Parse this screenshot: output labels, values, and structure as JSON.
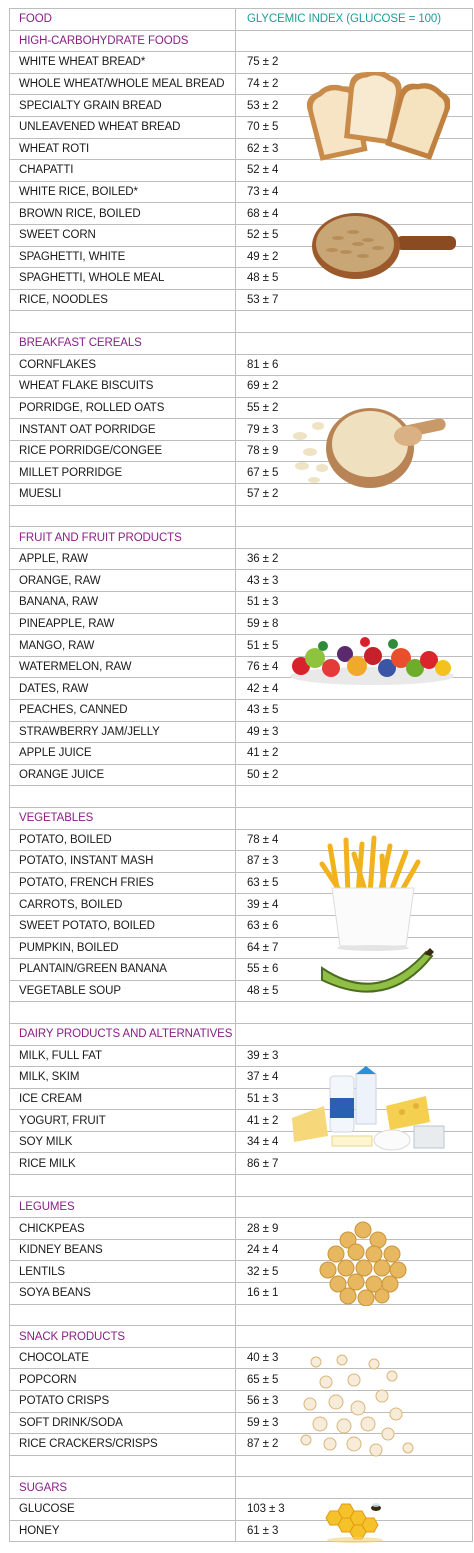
{
  "header": {
    "food": "FOOD",
    "gi": "GLYCEMIC INDEX (GLUCOSE = 100)"
  },
  "sections": [
    {
      "title": "HIGH-CARBOHYDRATE FOODS",
      "rows": [
        {
          "food": "WHITE WHEAT BREAD*",
          "gi": "75 ± 2"
        },
        {
          "food": "WHOLE WHEAT/WHOLE MEAL BREAD",
          "gi": "74 ± 2"
        },
        {
          "food": "SPECIALTY GRAIN BREAD",
          "gi": "53 ± 2"
        },
        {
          "food": "UNLEAVENED WHEAT BREAD",
          "gi": "70 ± 5"
        },
        {
          "food": "WHEAT ROTI",
          "gi": "62 ± 3"
        },
        {
          "food": "CHAPATTI",
          "gi": "52 ± 4"
        },
        {
          "food": "WHITE RICE, BOILED*",
          "gi": "73 ± 4"
        },
        {
          "food": "BROWN RICE, BOILED",
          "gi": "68 ± 4"
        },
        {
          "food": "SWEET CORN",
          "gi": "52 ± 5"
        },
        {
          "food": "SPAGHETTI, WHITE",
          "gi": "49 ± 2"
        },
        {
          "food": "SPAGHETTI, WHOLE MEAL",
          "gi": "48 ± 5"
        },
        {
          "food": "RICE, NOODLES",
          "gi": "53 ± 7"
        }
      ]
    },
    {
      "title": "BREAKFAST CEREALS",
      "rows": [
        {
          "food": "CORNFLAKES",
          "gi": "81 ± 6"
        },
        {
          "food": "WHEAT FLAKE BISCUITS",
          "gi": "69 ± 2"
        },
        {
          "food": "PORRIDGE, ROLLED OATS",
          "gi": "55 ± 2"
        },
        {
          "food": "INSTANT OAT PORRIDGE",
          "gi": "79 ± 3"
        },
        {
          "food": "RICE PORRIDGE/CONGEE",
          "gi": "78 ± 9"
        },
        {
          "food": "MILLET PORRIDGE",
          "gi": "67 ± 5"
        },
        {
          "food": "MUESLI",
          "gi": "57 ± 2"
        }
      ]
    },
    {
      "title": "FRUIT AND FRUIT PRODUCTS",
      "rows": [
        {
          "food": "APPLE, RAW",
          "gi": "36 ± 2"
        },
        {
          "food": "ORANGE, RAW",
          "gi": "43 ± 3"
        },
        {
          "food": "BANANA, RAW",
          "gi": "51 ± 3"
        },
        {
          "food": "PINEAPPLE, RAW",
          "gi": "59 ± 8"
        },
        {
          "food": "MANGO, RAW",
          "gi": "51 ± 5"
        },
        {
          "food": "WATERMELON, RAW",
          "gi": "76 ± 4"
        },
        {
          "food": "DATES, RAW",
          "gi": "42 ± 4"
        },
        {
          "food": "PEACHES, CANNED",
          "gi": "43 ± 5"
        },
        {
          "food": "STRAWBERRY JAM/JELLY",
          "gi": "49 ± 3"
        },
        {
          "food": "APPLE JUICE",
          "gi": "41 ± 2"
        },
        {
          "food": "ORANGE JUICE",
          "gi": "50 ± 2"
        }
      ]
    },
    {
      "title": "VEGETABLES",
      "rows": [
        {
          "food": "POTATO, BOILED",
          "gi": "78 ± 4"
        },
        {
          "food": "POTATO, INSTANT MASH",
          "gi": "87 ± 3"
        },
        {
          "food": "POTATO, FRENCH FRIES",
          "gi": "63 ± 5"
        },
        {
          "food": "CARROTS, BOILED",
          "gi": "39 ± 4"
        },
        {
          "food": "SWEET POTATO, BOILED",
          "gi": "63 ± 6"
        },
        {
          "food": "PUMPKIN, BOILED",
          "gi": "64 ± 7"
        },
        {
          "food": "PLANTAIN/GREEN BANANA",
          "gi": "55 ± 6"
        },
        {
          "food": "VEGETABLE SOUP",
          "gi": "48 ± 5"
        }
      ]
    },
    {
      "title": "DAIRY PRODUCTS AND ALTERNATIVES",
      "rows": [
        {
          "food": "MILK, FULL FAT",
          "gi": "39 ± 3"
        },
        {
          "food": "MILK, SKIM",
          "gi": "37 ± 4"
        },
        {
          "food": "ICE CREAM",
          "gi": "51 ± 3"
        },
        {
          "food": "YOGURT, FRUIT",
          "gi": "41 ± 2"
        },
        {
          "food": "SOY MILK",
          "gi": "34 ± 4"
        },
        {
          "food": "RICE MILK",
          "gi": "86 ± 7"
        }
      ]
    },
    {
      "title": "LEGUMES",
      "rows": [
        {
          "food": "CHICKPEAS",
          "gi": "28 ± 9"
        },
        {
          "food": "KIDNEY BEANS",
          "gi": "24 ± 4"
        },
        {
          "food": "LENTILS",
          "gi": "32 ± 5"
        },
        {
          "food": "SOYA BEANS",
          "gi": "16 ± 1"
        }
      ]
    },
    {
      "title": "SNACK PRODUCTS",
      "rows": [
        {
          "food": "CHOCOLATE",
          "gi": "40 ± 3"
        },
        {
          "food": "POPCORN",
          "gi": "65 ± 5"
        },
        {
          "food": "POTATO CRISPS",
          "gi": "56 ± 3"
        },
        {
          "food": "SOFT DRINK/SODA",
          "gi": "59 ± 3"
        },
        {
          "food": "RICE CRACKERS/CRISPS",
          "gi": "87 ± 2"
        }
      ]
    },
    {
      "title": "SUGARS",
      "rows": [
        {
          "food": "GLUCOSE",
          "gi": "103 ± 3"
        },
        {
          "food": "HONEY",
          "gi": "61 ± 3"
        }
      ]
    }
  ],
  "images": [
    "bread-slices",
    "brown-rice-spoon",
    "oats-bowl",
    "mixed-fruits",
    "french-fries",
    "green-plantain",
    "dairy-group",
    "chickpeas",
    "popcorn",
    "honeycomb"
  ],
  "colors": {
    "section_title": "#8a1f86",
    "gi_header": "#1f9c9a",
    "border": "#bdbdbd",
    "text": "#1a1a1a"
  }
}
